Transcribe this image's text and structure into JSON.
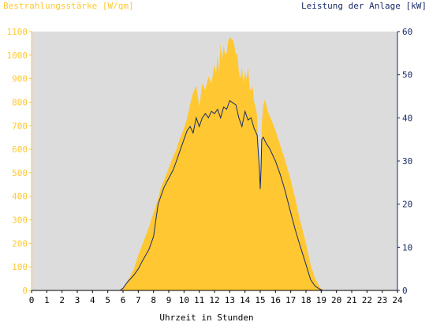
{
  "chart_data": {
    "type": "area",
    "ylabel_left": "Bestrahlungsstärke [W/qm]",
    "ylabel_right": "Leistung der Anlage [kW]",
    "xlabel": "Uhrzeit in Stunden",
    "x_ticks": [
      "0",
      "1",
      "2",
      "3",
      "4",
      "5",
      "6",
      "7",
      "8",
      "9",
      "10",
      "11",
      "12",
      "13",
      "14",
      "15",
      "16",
      "17",
      "18",
      "19",
      "20",
      "21",
      "22",
      "23",
      "24"
    ],
    "y_left_ticks": [
      "0",
      "100",
      "200",
      "300",
      "400",
      "500",
      "600",
      "700",
      "800",
      "900",
      "1000",
      "1100"
    ],
    "y_right_ticks": [
      "0",
      "10",
      "20",
      "30",
      "40",
      "50",
      "60"
    ],
    "xlim": [
      0,
      24
    ],
    "ylim_left": [
      0,
      1100
    ],
    "ylim_right": [
      0,
      60
    ],
    "grid": false,
    "colors": {
      "irradiance": "#ffc832",
      "irradiance_axis": "#ffc832",
      "power": "#1a2a66",
      "power_axis": "#1a2a66",
      "plot_background": "#dcdcdc"
    },
    "series": [
      {
        "axis": "left",
        "style": "area",
        "x": [
          0,
          5.8,
          6,
          6.3,
          6.7,
          7,
          7.3,
          7.7,
          8,
          8.3,
          8.5,
          8.7,
          9,
          9.3,
          9.5,
          9.7,
          10,
          10.2,
          10.4,
          10.6,
          10.8,
          11,
          11.2,
          11.4,
          11.6,
          11.8,
          12,
          12.1,
          12.2,
          12.3,
          12.4,
          12.5,
          12.6,
          12.7,
          12.8,
          12.9,
          13,
          13.1,
          13.2,
          13.3,
          13.4,
          13.5,
          13.6,
          13.7,
          13.8,
          13.9,
          14,
          14.1,
          14.2,
          14.3,
          14.4,
          14.5,
          14.6,
          14.7,
          14.8,
          14.9,
          15,
          15.05,
          15.1,
          15.2,
          15.3,
          15.5,
          15.7,
          16,
          16.3,
          16.6,
          17,
          17.3,
          17.6,
          18,
          18.3,
          18.6,
          18.9,
          19.1,
          24
        ],
        "y": [
          0,
          0,
          10,
          40,
          90,
          150,
          200,
          270,
          330,
          390,
          440,
          470,
          520,
          570,
          600,
          640,
          690,
          730,
          790,
          840,
          870,
          780,
          880,
          850,
          910,
          880,
          960,
          920,
          1000,
          930,
          1050,
          980,
          1040,
          1000,
          1010,
          1060,
          1075,
          1070,
          1065,
          1040,
          1000,
          1010,
          930,
          900,
          950,
          880,
          930,
          900,
          950,
          860,
          850,
          870,
          800,
          780,
          740,
          560,
          450,
          500,
          700,
          790,
          810,
          760,
          730,
          680,
          620,
          560,
          470,
          390,
          300,
          200,
          110,
          50,
          15,
          0,
          0
        ]
      },
      {
        "axis": "right",
        "style": "line",
        "x": [
          0,
          5.8,
          6,
          6.3,
          6.7,
          7,
          7.3,
          7.7,
          8,
          8.3,
          8.5,
          8.7,
          9,
          9.3,
          9.5,
          9.7,
          10,
          10.2,
          10.4,
          10.6,
          10.8,
          11,
          11.2,
          11.4,
          11.6,
          11.8,
          12,
          12.2,
          12.4,
          12.6,
          12.8,
          13,
          13.2,
          13.4,
          13.6,
          13.8,
          14,
          14.2,
          14.4,
          14.6,
          14.8,
          14.95,
          15,
          15.05,
          15.1,
          15.2,
          15.4,
          15.6,
          16,
          16.3,
          16.6,
          17,
          17.3,
          17.6,
          18,
          18.3,
          18.6,
          18.9,
          19.1,
          24
        ],
        "y": [
          0,
          0,
          0.5,
          2,
          3.5,
          5,
          7,
          9.5,
          12.5,
          20,
          22,
          24,
          26,
          28,
          30,
          32,
          35,
          37,
          38,
          36.5,
          40,
          38,
          40,
          41,
          40,
          41.5,
          41,
          42,
          40,
          42.5,
          42,
          44,
          43.5,
          43,
          40,
          38,
          41.5,
          39.5,
          40,
          37.5,
          36,
          28,
          23.5,
          28,
          35,
          35.5,
          34,
          33,
          30,
          27,
          23.5,
          18,
          14,
          10.5,
          6,
          2.5,
          1,
          0.3,
          0,
          0
        ]
      }
    ]
  }
}
